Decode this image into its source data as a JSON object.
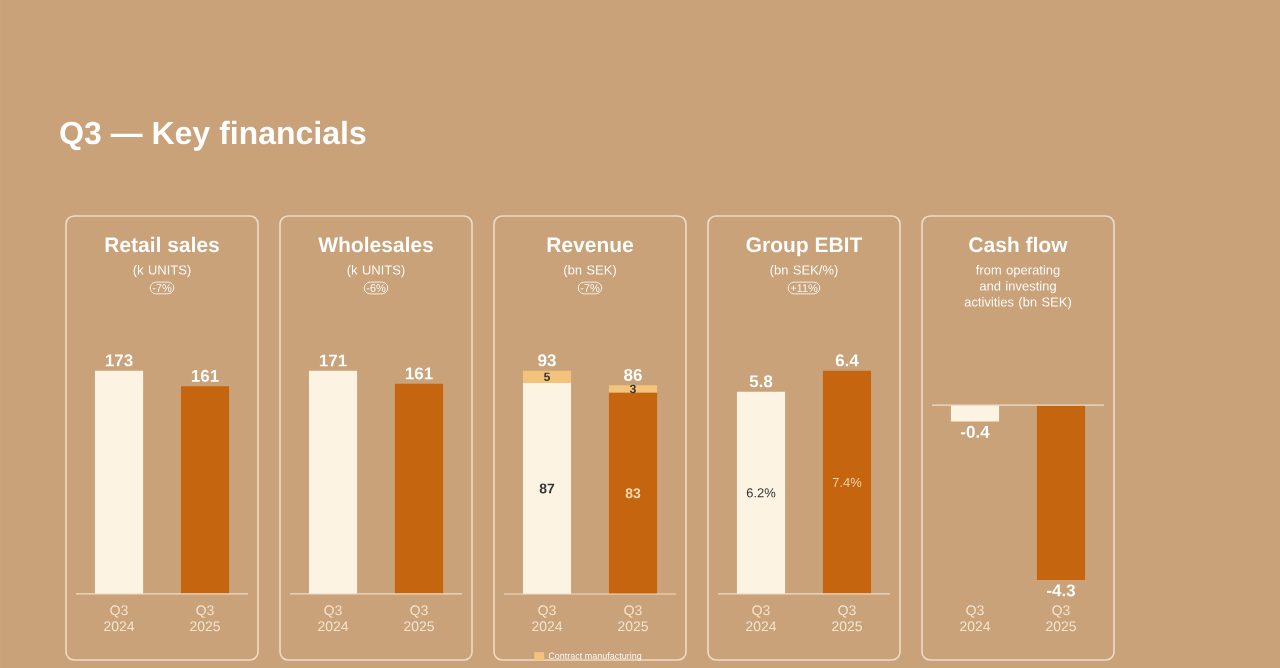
{
  "chart_data": [
    {
      "type": "bar",
      "title": "Retail sales",
      "subtitle": "(k UNITS)",
      "categories": [
        "Q3 2024",
        "Q3 2025"
      ],
      "values": [
        173,
        161
      ],
      "colors": [
        "#fdf3e3",
        "#c6650f"
      ],
      "data_labels": true,
      "annotations": [
        "Q3 — Key financials",
        "-7%"
      ]
    },
    {
      "type": "bar",
      "title": "Wholesales",
      "subtitle": "(k UNITS)",
      "categories": [
        "Q3 2024",
        "Q3 2025"
      ],
      "values": [
        171,
        161
      ],
      "colors": [
        "#fdf3e3",
        "#c6650f"
      ],
      "data_labels": true,
      "annotations": [
        "-6%"
      ]
    },
    {
      "type": "bar",
      "title": "Revenue",
      "subtitle": "(bn SEK)",
      "categories": [
        "Q3 2024",
        "Q3 2025"
      ],
      "stacked": true,
      "data_labels": true,
      "legend": "bottom",
      "totals": [
        "93",
        "86"
      ],
      "series": [
        {
          "colors": [
            "#fdf3e3",
            "#c6650f"
          ],
          "values": [
            87,
            83
          ]
        },
        {
          "name": "Contract manufacturing",
          "color": "#f3c37c",
          "values": [
            5,
            3
          ]
        }
      ],
      "annotations": [
        "-7%"
      ]
    },
    {
      "type": "bar",
      "title": "Group EBIT",
      "subtitle": "(bn SEK/%)",
      "categories": [
        "Q3 2024",
        "Q3 2025"
      ],
      "values": [
        5.8,
        6.4
      ],
      "colors": [
        "#fdf3e3",
        "#c6650f"
      ],
      "data_labels": true,
      "annotations": [
        "+11%",
        "6.2%",
        "7.4%"
      ]
    },
    {
      "type": "bar",
      "title": "Cash flow",
      "subtitle": "from operating and investing activities (bn SEK)",
      "categories": [
        "Q3 2024",
        "Q3 2025"
      ],
      "values": [
        -0.4,
        -4.3
      ],
      "colors": [
        "#fdf3e3",
        "#c6650f"
      ],
      "data_labels": true
    }
  ]
}
